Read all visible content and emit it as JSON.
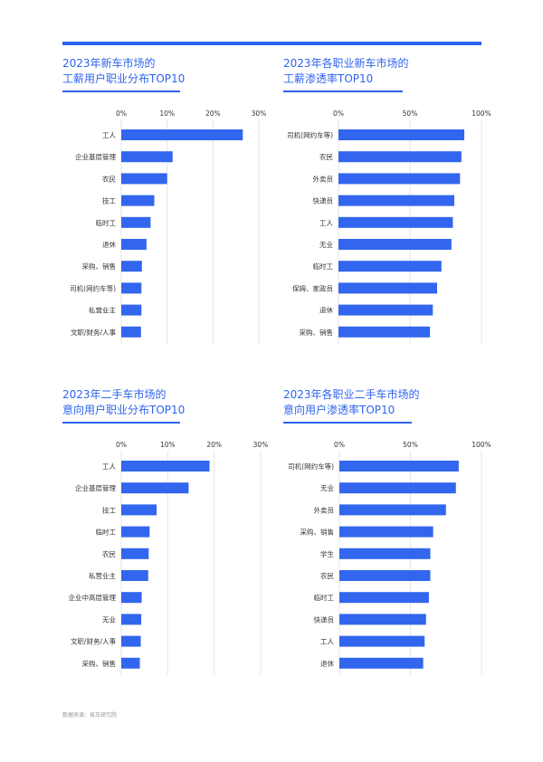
{
  "colors": {
    "accent": "#2e63f0",
    "bar": "#3366ee",
    "grid": "#e6e6e6",
    "text": "#333333"
  },
  "source": "数据来源：易车研究院",
  "charts": [
    {
      "title_line1": "2023年新车市场的",
      "title_line2": "工薪用户职业分布TOP10",
      "chart_data": {
        "type": "bar",
        "orientation": "horizontal",
        "categories": [
          "工人",
          "企业基层管理",
          "农民",
          "技工",
          "临时工",
          "退休",
          "采购、销售",
          "司机(网约车等)",
          "私营业主",
          "文职/财务/人事"
        ],
        "values": [
          26.5,
          11.2,
          10.0,
          7.2,
          6.4,
          5.5,
          4.5,
          4.4,
          4.4,
          4.3
        ],
        "ticks": [
          "0%",
          "10%",
          "20%",
          "30%"
        ],
        "xlim": [
          0,
          30
        ],
        "grid": true
      }
    },
    {
      "title_line1": "2023年各职业新车市场的",
      "title_line2": "工薪渗透率TOP10",
      "chart_data": {
        "type": "bar",
        "orientation": "horizontal",
        "categories": [
          "司机(网约车等)",
          "农民",
          "外卖员",
          "快递员",
          "工人",
          "无业",
          "临时工",
          "保姆、家政员",
          "退休",
          "采购、销售"
        ],
        "values": [
          88,
          86,
          85,
          81,
          80,
          79,
          72,
          69,
          66,
          64
        ],
        "ticks": [
          "0%",
          "50%",
          "100%"
        ],
        "xlim": [
          0,
          100
        ],
        "grid": true
      }
    },
    {
      "title_line1": "2023年二手车市场的",
      "title_line2": "意向用户职业分布TOP10",
      "chart_data": {
        "type": "bar",
        "orientation": "horizontal",
        "categories": [
          "工人",
          "企业基层管理",
          "技工",
          "临时工",
          "农民",
          "私营业主",
          "企业中高层管理",
          "无业",
          "文职/财务/人事",
          "采购、销售"
        ],
        "values": [
          19.0,
          14.5,
          7.6,
          6.1,
          5.9,
          5.8,
          4.4,
          4.3,
          4.2,
          4.0
        ],
        "ticks": [
          "0%",
          "10%",
          "20%",
          "30%"
        ],
        "xlim": [
          0,
          30
        ],
        "grid": true
      }
    },
    {
      "title_line1": "2023年各职业二手车市场的",
      "title_line2": "意向用户渗透率TOP10",
      "chart_data": {
        "type": "bar",
        "orientation": "horizontal",
        "categories": [
          "司机(网约车等)",
          "无业",
          "外卖员",
          "采购、销售",
          "学生",
          "农民",
          "临时工",
          "快递员",
          "工人",
          "退休"
        ],
        "values": [
          84,
          82,
          75,
          66,
          64,
          64,
          63,
          61,
          60,
          59
        ],
        "ticks": [
          "0%",
          "50%",
          "100%"
        ],
        "xlim": [
          0,
          100
        ],
        "grid": true
      }
    }
  ]
}
